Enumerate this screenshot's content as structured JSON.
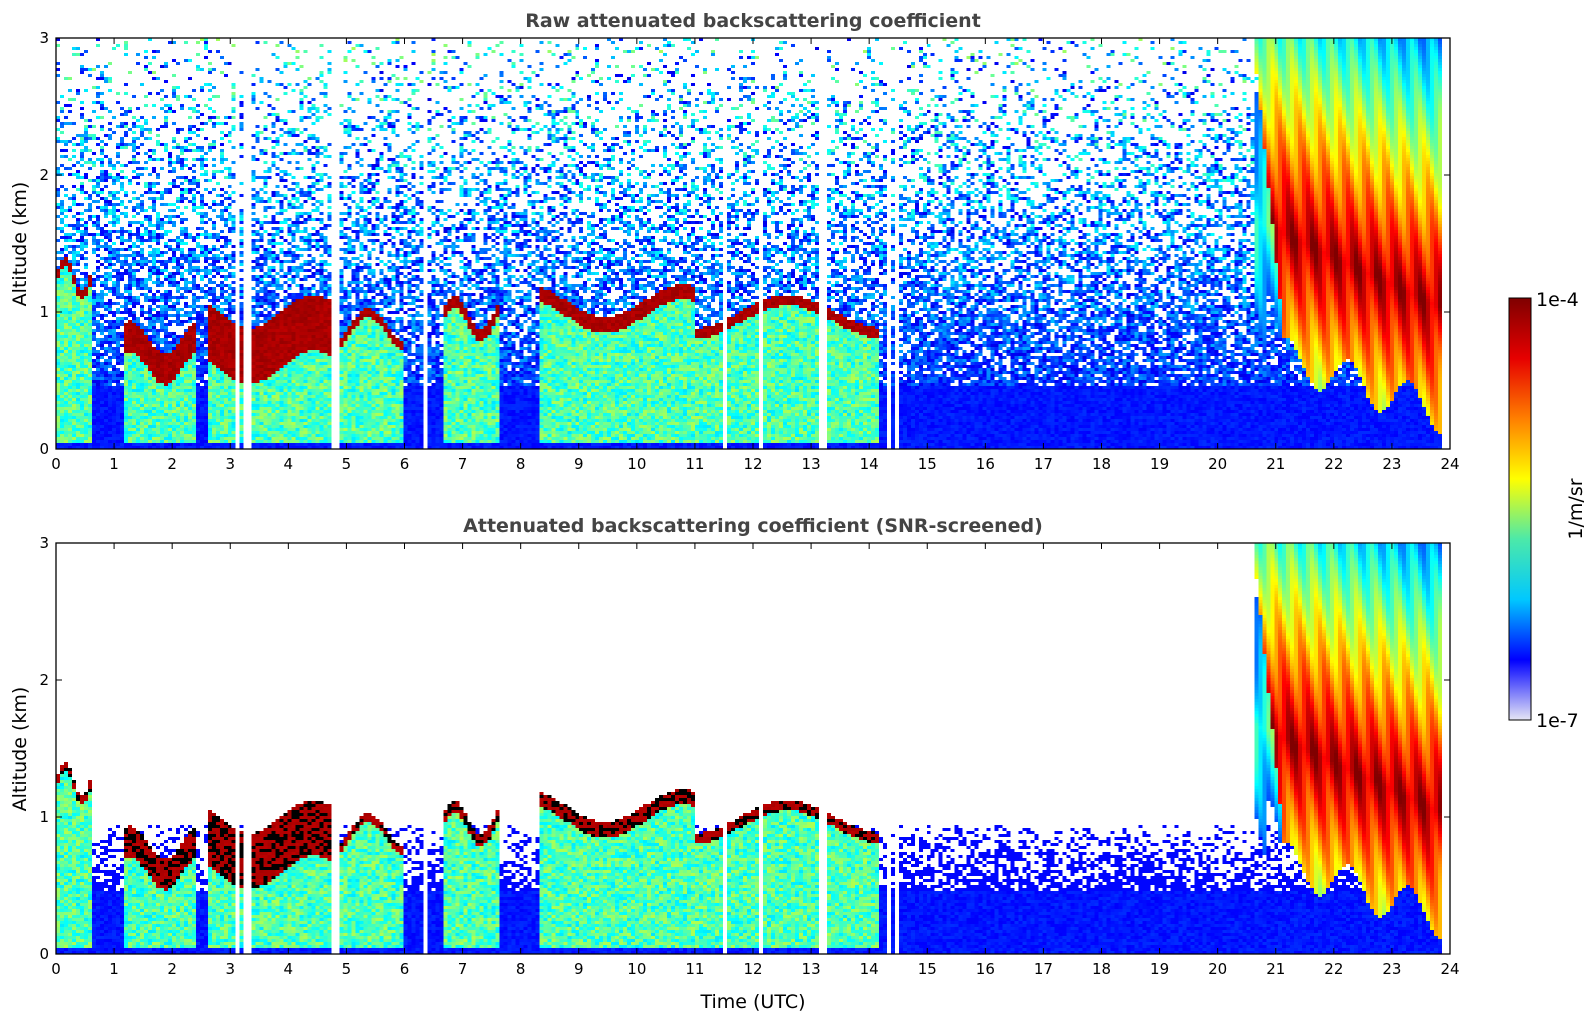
{
  "chart_data": [
    {
      "type": "heatmap",
      "title": "Raw attenuated backscattering coefficient",
      "xlabel": "",
      "ylabel": "Altitude (km)",
      "xlim": [
        0,
        24
      ],
      "ylim": [
        0,
        3
      ],
      "x_ticks": [
        "0",
        "1",
        "2",
        "3",
        "4",
        "5",
        "6",
        "7",
        "8",
        "9",
        "10",
        "11",
        "12",
        "13",
        "14",
        "15",
        "16",
        "17",
        "18",
        "19",
        "20",
        "21",
        "22",
        "23",
        "24"
      ],
      "y_ticks": [
        "0",
        "1",
        "2",
        "3"
      ],
      "screened": false,
      "features": [
        {
          "kind": "cloud_layer",
          "x": [
            0.0,
            0.6
          ],
          "base_km": 1.17,
          "top_km": 1.32
        },
        {
          "kind": "cloud_layer",
          "x": [
            1.2,
            2.4
          ],
          "base_km": 0.45,
          "top_km": 0.95
        },
        {
          "kind": "cloud_layer",
          "x": [
            2.6,
            4.8
          ],
          "base_km": 0.35,
          "top_km": 1.25
        },
        {
          "kind": "cloud_layer",
          "x": [
            4.8,
            6.0
          ],
          "base_km": 0.8,
          "top_km": 0.95
        },
        {
          "kind": "cloud_layer",
          "x": [
            6.7,
            7.6
          ],
          "base_km": 0.85,
          "top_km": 1.05
        },
        {
          "kind": "cloud_layer",
          "x": [
            8.3,
            11.0
          ],
          "base_km": 0.9,
          "top_km": 1.15
        },
        {
          "kind": "cloud_layer",
          "x": [
            11.0,
            14.2
          ],
          "base_km": 0.88,
          "top_km": 1.05
        },
        {
          "kind": "precipitation",
          "x": [
            20.6,
            23.9
          ],
          "base_km": 0.2,
          "top_km": 3.0
        }
      ],
      "data_gaps": [
        3.15,
        3.3,
        4.8,
        4.85,
        6.35,
        11.5,
        12.15,
        13.2,
        13.25,
        14.35,
        14.45
      ]
    },
    {
      "type": "heatmap",
      "title": "Attenuated backscattering coefficient (SNR-screened)",
      "xlabel": "Time (UTC)",
      "ylabel": "Altitude (km)",
      "xlim": [
        0,
        24
      ],
      "ylim": [
        0,
        3
      ],
      "x_ticks": [
        "0",
        "1",
        "2",
        "3",
        "4",
        "5",
        "6",
        "7",
        "8",
        "9",
        "10",
        "11",
        "12",
        "13",
        "14",
        "15",
        "16",
        "17",
        "18",
        "19",
        "20",
        "21",
        "22",
        "23",
        "24"
      ],
      "y_ticks": [
        "0",
        "1",
        "2",
        "3"
      ],
      "screened": true
    }
  ],
  "colorbar": {
    "label": "1/m/sr",
    "max_label": "1e-4",
    "min_label": "1e-7",
    "scale": "log",
    "range": [
      1e-07,
      0.0001
    ],
    "colormap": "jet",
    "colors": [
      "#e6e6f5",
      "#0000ff",
      "#00c8ff",
      "#4ce9a9",
      "#ffff00",
      "#ff7f00",
      "#e60000",
      "#7f0000"
    ]
  }
}
